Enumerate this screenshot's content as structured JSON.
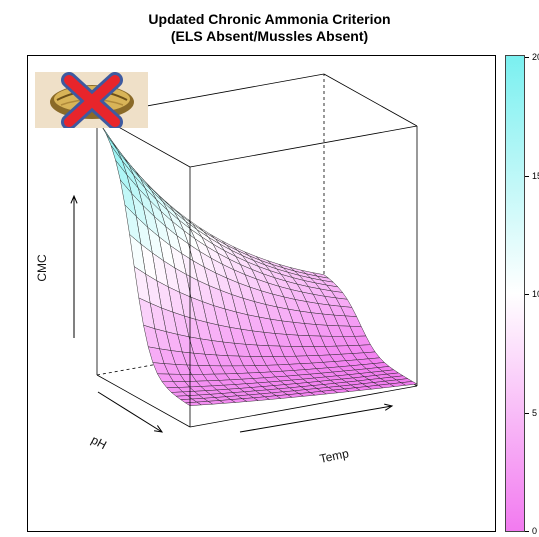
{
  "chart_data": {
    "type": "surface",
    "title": "Updated Chronic Ammonia Criterion",
    "subtitle": "(ELS Absent/Mussles Absent)",
    "axes": {
      "x": {
        "label": "Temp"
      },
      "y": {
        "label": "pH"
      },
      "z": {
        "label": "CMC"
      }
    },
    "colorbar": {
      "range": [
        0,
        20
      ],
      "ticks": [
        0,
        5,
        10,
        15,
        20
      ],
      "colors": [
        "#f27af0",
        "#ffffff",
        "#7af0f0"
      ]
    },
    "grid_size": [
      20,
      20
    ],
    "surface_description": "CMC decreases with increasing pH and increasing temperature",
    "logo": "mussel-crossed-out-icon"
  }
}
